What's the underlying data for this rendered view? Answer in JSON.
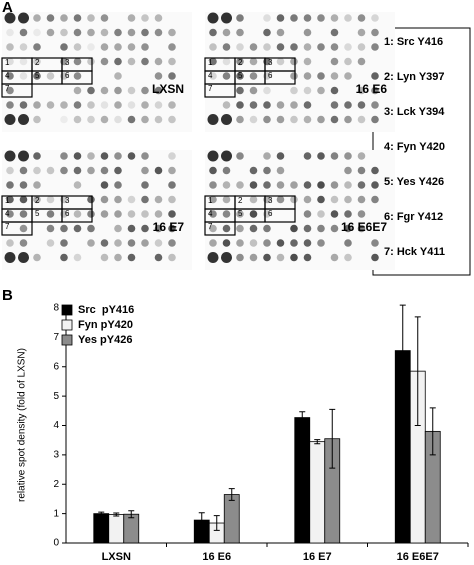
{
  "panel_a": {
    "label": "A",
    "blots": [
      "LXSN",
      "16 E6",
      "16 E7",
      "16 E6E7"
    ],
    "box_numbers": [
      "1",
      "2",
      "3",
      "4",
      "5",
      "6",
      "7"
    ],
    "legend": [
      "1: Src Y416",
      "2: Lyn Y397",
      "3: Lck Y394",
      "4: Fyn Y420",
      "5: Yes Y426",
      "6: Fgr Y412",
      "7: Hck Y411"
    ]
  },
  "chart_data": {
    "type": "bar",
    "panel_label": "B",
    "y_label": "relative spot density (fold of LXSN)",
    "categories": [
      "LXSN",
      "16 E6",
      "16 E7",
      "16 E6E7"
    ],
    "series": [
      {
        "name": "Src  pY416",
        "color": "#000000",
        "values": [
          1.0,
          0.78,
          4.27,
          6.55
        ],
        "errors": [
          0.05,
          0.25,
          0.2,
          1.55
        ]
      },
      {
        "name": "Fyn pY420",
        "color": "#f2f2f2",
        "values": [
          0.97,
          0.68,
          3.45,
          5.85
        ],
        "errors": [
          0.05,
          0.25,
          0.07,
          1.85
        ]
      },
      {
        "name": "Yes pY426",
        "color": "#8c8c8c",
        "values": [
          0.98,
          1.65,
          3.55,
          3.8
        ],
        "errors": [
          0.12,
          0.2,
          1.0,
          0.8
        ]
      }
    ],
    "ylim": [
      0,
      8
    ],
    "yticks": [
      0,
      1,
      2,
      3,
      4,
      5,
      6,
      7,
      8
    ],
    "grid": false
  }
}
